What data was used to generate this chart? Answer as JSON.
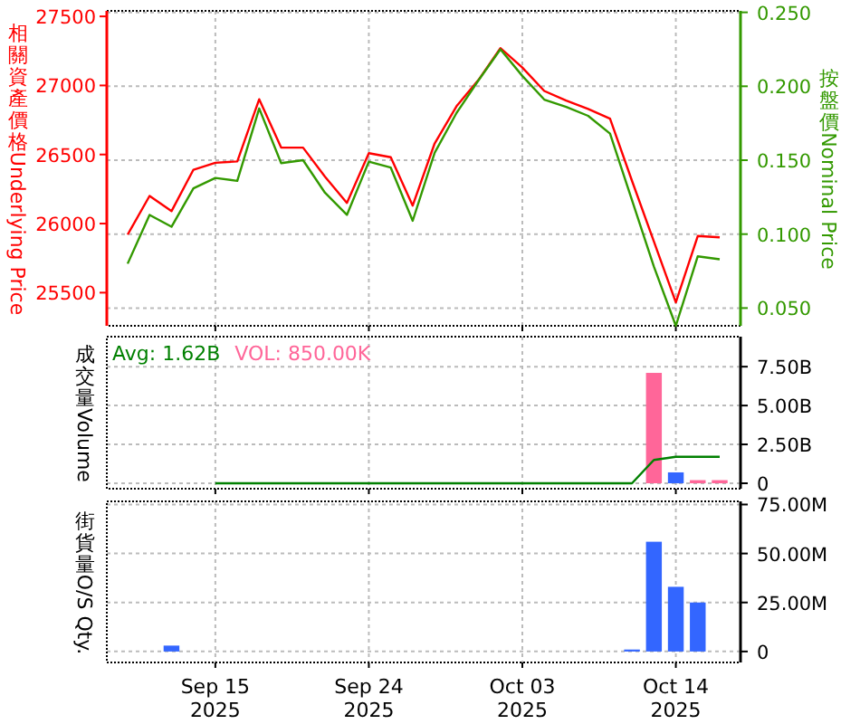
{
  "chart_data": [
    {
      "type": "line",
      "ylabel": "相關資產價格 Underlying Price",
      "y2label": "按盤價Nominal Price",
      "categories": [
        null,
        null,
        null,
        null,
        null,
        null,
        null,
        null,
        null,
        null,
        null,
        null,
        null,
        null,
        null,
        null,
        null,
        null,
        null,
        null,
        null,
        null,
        null,
        null,
        null,
        null,
        null,
        null
      ],
      "series": [
        {
          "color": "#ff0000",
          "values": [
            25920,
            26200,
            26090,
            26390,
            26440,
            26450,
            26900,
            26550,
            26550,
            26340,
            26150,
            26510,
            26480,
            26130,
            26580,
            26850,
            27040,
            27270,
            27130,
            26960,
            26890,
            26830,
            26760,
            26310,
            25870,
            25430,
            25910,
            25900
          ]
        },
        {
          "color": "#339900",
          "axis": "y2",
          "values": [
            0.08,
            0.113,
            0.105,
            0.131,
            0.138,
            0.136,
            0.185,
            0.148,
            0.15,
            0.128,
            0.113,
            0.149,
            0.145,
            0.109,
            0.155,
            0.182,
            0.204,
            0.225,
            0.207,
            0.191,
            0.186,
            0.18,
            0.168,
            0.123,
            0.078,
            0.038,
            0.085,
            0.083
          ]
        }
      ],
      "ylim": [
        25260,
        27540
      ],
      "yticks": [
        25500,
        26000,
        26500,
        27000,
        27500
      ],
      "y2lim": [
        0.038,
        0.251
      ],
      "y2ticks": [
        {
          "value": 0.05,
          "label": "0.050"
        },
        {
          "value": 0.1,
          "label": "0.100"
        },
        {
          "value": 0.15,
          "label": "0.150"
        },
        {
          "value": 0.2,
          "label": "0.200"
        },
        {
          "value": 0.25,
          "label": "0.250"
        }
      ],
      "grid": true,
      "tick_labels": "y"
    },
    {
      "type": "bar",
      "ylabel": "成交量Volume",
      "annotations": [
        "Avg: 1.62B",
        "VOL: 850.00K"
      ],
      "categories": [
        null,
        null,
        null,
        null,
        null,
        null,
        null,
        null,
        null,
        null,
        null,
        null,
        null,
        null,
        null,
        null,
        null,
        null,
        null,
        null,
        null,
        null,
        null,
        null,
        null,
        null,
        null,
        null
      ],
      "series": [
        {
          "colors": [
            null,
            null,
            null,
            null,
            null,
            null,
            null,
            null,
            null,
            null,
            null,
            null,
            null,
            null,
            null,
            null,
            null,
            null,
            null,
            null,
            null,
            null,
            null,
            null,
            "#ff6699",
            "#3366ff",
            "#ff6699",
            "#ff6699"
          ],
          "values": [
            null,
            null,
            null,
            null,
            null,
            null,
            null,
            null,
            null,
            null,
            null,
            null,
            null,
            null,
            null,
            null,
            null,
            null,
            null,
            null,
            null,
            null,
            null,
            null,
            7.1,
            0.7,
            0.2,
            0.2
          ]
        },
        {
          "type": "line",
          "color": "#008000",
          "values": [
            null,
            null,
            null,
            null,
            0,
            0,
            0,
            0,
            0,
            0,
            0,
            0,
            0,
            0,
            0,
            0,
            0,
            0,
            0,
            0,
            0,
            0,
            0,
            0,
            1.5,
            1.7,
            1.7,
            1.7
          ]
        }
      ],
      "ylim": [
        -0.35,
        9.43
      ],
      "yticks": [
        0,
        {
          "value": 2.5,
          "label": "2.50B"
        },
        {
          "value": 5,
          "label": "5.00B"
        },
        {
          "value": 7.5,
          "label": "7.50B"
        }
      ],
      "grid": true,
      "tick_labels": "y"
    },
    {
      "type": "bar",
      "ylabel": "街貨量O/S Qty.",
      "categories": [
        null,
        null,
        null,
        null,
        "Sep 15\n2025",
        null,
        null,
        null,
        null,
        null,
        null,
        "Sep 24\n2025",
        null,
        null,
        null,
        null,
        null,
        null,
        "Oct 03\n2025",
        null,
        null,
        null,
        null,
        null,
        null,
        "Oct 14\n2025",
        null,
        null
      ],
      "series": [
        {
          "color": "#3366ff",
          "values": [
            null,
            null,
            3,
            null,
            null,
            null,
            null,
            null,
            null,
            null,
            null,
            null,
            null,
            null,
            null,
            null,
            null,
            null,
            null,
            null,
            null,
            null,
            null,
            1,
            56,
            33,
            25,
            null
          ]
        }
      ],
      "ylim": [
        -5.6,
        76.6
      ],
      "yticks": [
        0,
        {
          "value": 25,
          "label": "25.00M"
        },
        {
          "value": 50,
          "label": "50.00M"
        },
        {
          "value": 75,
          "label": "75.00M"
        }
      ],
      "grid": true
    }
  ]
}
